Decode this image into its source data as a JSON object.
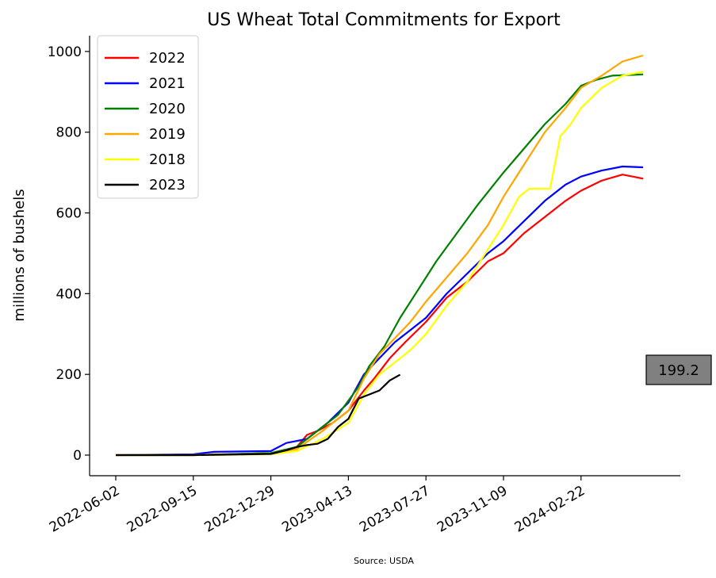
{
  "chart_data": {
    "type": "line",
    "title": "US Wheat Total Commitments for Export",
    "xlabel": "",
    "ylabel": "millions of bushels",
    "source": "Source: USDA",
    "x_tick_labels": [
      "2022-06-02",
      "2022-09-15",
      "2022-12-29",
      "2023-04-13",
      "2023-07-27",
      "2023-11-09",
      "2024-02-22"
    ],
    "ylim": [
      -50,
      1030
    ],
    "y_ticks": [
      0,
      200,
      400,
      600,
      800,
      1000
    ],
    "legend_position": "top-left",
    "grid": false,
    "annotation": {
      "label": "199.2"
    },
    "colors": {
      "2022": "#ff0000",
      "2021": "#0000ff",
      "2020": "#008000",
      "2019": "#ffa500",
      "2018": "#ffff00",
      "2023": "#000000"
    },
    "series": [
      {
        "name": "2022",
        "color": "#ff0000",
        "points": [
          [
            "2022-06-02",
            0
          ],
          [
            "2022-09-15",
            0
          ],
          [
            "2022-12-29",
            5
          ],
          [
            "2023-02-02",
            20
          ],
          [
            "2023-02-16",
            50
          ],
          [
            "2023-03-02",
            60
          ],
          [
            "2023-03-23",
            80
          ],
          [
            "2023-04-13",
            110
          ],
          [
            "2023-05-04",
            160
          ],
          [
            "2023-05-18",
            190
          ],
          [
            "2023-06-08",
            240
          ],
          [
            "2023-06-29",
            280
          ],
          [
            "2023-07-27",
            330
          ],
          [
            "2023-08-24",
            390
          ],
          [
            "2023-09-21",
            430
          ],
          [
            "2023-10-19",
            480
          ],
          [
            "2023-11-09",
            500
          ],
          [
            "2023-12-07",
            550
          ],
          [
            "2024-01-04",
            590
          ],
          [
            "2024-02-01",
            630
          ],
          [
            "2024-02-22",
            655
          ],
          [
            "2024-03-21",
            680
          ],
          [
            "2024-04-18",
            695
          ],
          [
            "2024-05-02",
            690
          ],
          [
            "2024-05-16",
            685
          ]
        ]
      },
      {
        "name": "2021",
        "color": "#0000ff",
        "points": [
          [
            "2022-06-02",
            0
          ],
          [
            "2022-09-15",
            2
          ],
          [
            "2022-10-13",
            8
          ],
          [
            "2022-12-29",
            10
          ],
          [
            "2023-01-19",
            30
          ],
          [
            "2023-02-16",
            40
          ],
          [
            "2023-03-16",
            80
          ],
          [
            "2023-04-13",
            130
          ],
          [
            "2023-05-04",
            200
          ],
          [
            "2023-05-25",
            240
          ],
          [
            "2023-06-15",
            280
          ],
          [
            "2023-07-06",
            310
          ],
          [
            "2023-07-27",
            340
          ],
          [
            "2023-08-24",
            400
          ],
          [
            "2023-09-21",
            450
          ],
          [
            "2023-10-19",
            500
          ],
          [
            "2023-11-09",
            530
          ],
          [
            "2023-12-07",
            580
          ],
          [
            "2024-01-04",
            630
          ],
          [
            "2024-02-01",
            670
          ],
          [
            "2024-02-22",
            690
          ],
          [
            "2024-03-21",
            705
          ],
          [
            "2024-04-18",
            715
          ],
          [
            "2024-05-16",
            713
          ]
        ]
      },
      {
        "name": "2020",
        "color": "#008000",
        "points": [
          [
            "2022-06-02",
            0
          ],
          [
            "2022-09-15",
            0
          ],
          [
            "2022-12-29",
            5
          ],
          [
            "2023-02-02",
            20
          ],
          [
            "2023-03-02",
            60
          ],
          [
            "2023-03-30",
            100
          ],
          [
            "2023-04-27",
            170
          ],
          [
            "2023-05-11",
            220
          ],
          [
            "2023-06-01",
            270
          ],
          [
            "2023-06-22",
            340
          ],
          [
            "2023-07-20",
            420
          ],
          [
            "2023-08-10",
            480
          ],
          [
            "2023-09-07",
            550
          ],
          [
            "2023-10-05",
            620
          ],
          [
            "2023-11-09",
            700
          ],
          [
            "2023-12-07",
            760
          ],
          [
            "2024-01-04",
            820
          ],
          [
            "2024-02-01",
            870
          ],
          [
            "2024-02-22",
            915
          ],
          [
            "2024-03-14",
            930
          ],
          [
            "2024-04-04",
            940
          ],
          [
            "2024-05-16",
            943
          ]
        ]
      },
      {
        "name": "2019",
        "color": "#ffa500",
        "points": [
          [
            "2022-06-02",
            0
          ],
          [
            "2022-09-15",
            0
          ],
          [
            "2022-12-29",
            3
          ],
          [
            "2023-02-02",
            15
          ],
          [
            "2023-03-09",
            60
          ],
          [
            "2023-04-13",
            110
          ],
          [
            "2023-05-04",
            190
          ],
          [
            "2023-05-25",
            250
          ],
          [
            "2023-06-15",
            290
          ],
          [
            "2023-07-06",
            330
          ],
          [
            "2023-07-27",
            380
          ],
          [
            "2023-08-24",
            440
          ],
          [
            "2023-09-21",
            500
          ],
          [
            "2023-10-19",
            570
          ],
          [
            "2023-11-09",
            640
          ],
          [
            "2023-12-07",
            720
          ],
          [
            "2024-01-04",
            800
          ],
          [
            "2024-02-01",
            860
          ],
          [
            "2024-02-22",
            910
          ],
          [
            "2024-03-21",
            940
          ],
          [
            "2024-04-18",
            975
          ],
          [
            "2024-05-16",
            990
          ]
        ]
      },
      {
        "name": "2018",
        "color": "#ffff00",
        "points": [
          [
            "2022-06-02",
            0
          ],
          [
            "2022-09-15",
            0
          ],
          [
            "2022-12-29",
            2
          ],
          [
            "2023-02-02",
            10
          ],
          [
            "2023-03-09",
            40
          ],
          [
            "2023-04-13",
            80
          ],
          [
            "2023-05-04",
            150
          ],
          [
            "2023-05-25",
            200
          ],
          [
            "2023-06-15",
            230
          ],
          [
            "2023-07-06",
            260
          ],
          [
            "2023-07-27",
            300
          ],
          [
            "2023-08-24",
            370
          ],
          [
            "2023-09-21",
            430
          ],
          [
            "2023-10-19",
            510
          ],
          [
            "2023-11-09",
            570
          ],
          [
            "2023-11-30",
            640
          ],
          [
            "2023-12-14",
            660
          ],
          [
            "2024-01-11",
            660
          ],
          [
            "2024-01-25",
            790
          ],
          [
            "2024-02-08",
            820
          ],
          [
            "2024-02-22",
            860
          ],
          [
            "2024-03-21",
            910
          ],
          [
            "2024-04-18",
            940
          ],
          [
            "2024-05-16",
            950
          ]
        ]
      },
      {
        "name": "2023",
        "color": "#000000",
        "points": [
          [
            "2022-06-02",
            0
          ],
          [
            "2022-09-15",
            0
          ],
          [
            "2022-12-29",
            3
          ],
          [
            "2023-01-19",
            12
          ],
          [
            "2023-02-02",
            20
          ],
          [
            "2023-02-16",
            25
          ],
          [
            "2023-03-02",
            28
          ],
          [
            "2023-03-16",
            40
          ],
          [
            "2023-03-30",
            70
          ],
          [
            "2023-04-13",
            90
          ],
          [
            "2023-04-27",
            140
          ],
          [
            "2023-05-11",
            150
          ],
          [
            "2023-05-25",
            160
          ],
          [
            "2023-06-08",
            185
          ],
          [
            "2023-06-22",
            199.2
          ]
        ]
      }
    ]
  }
}
